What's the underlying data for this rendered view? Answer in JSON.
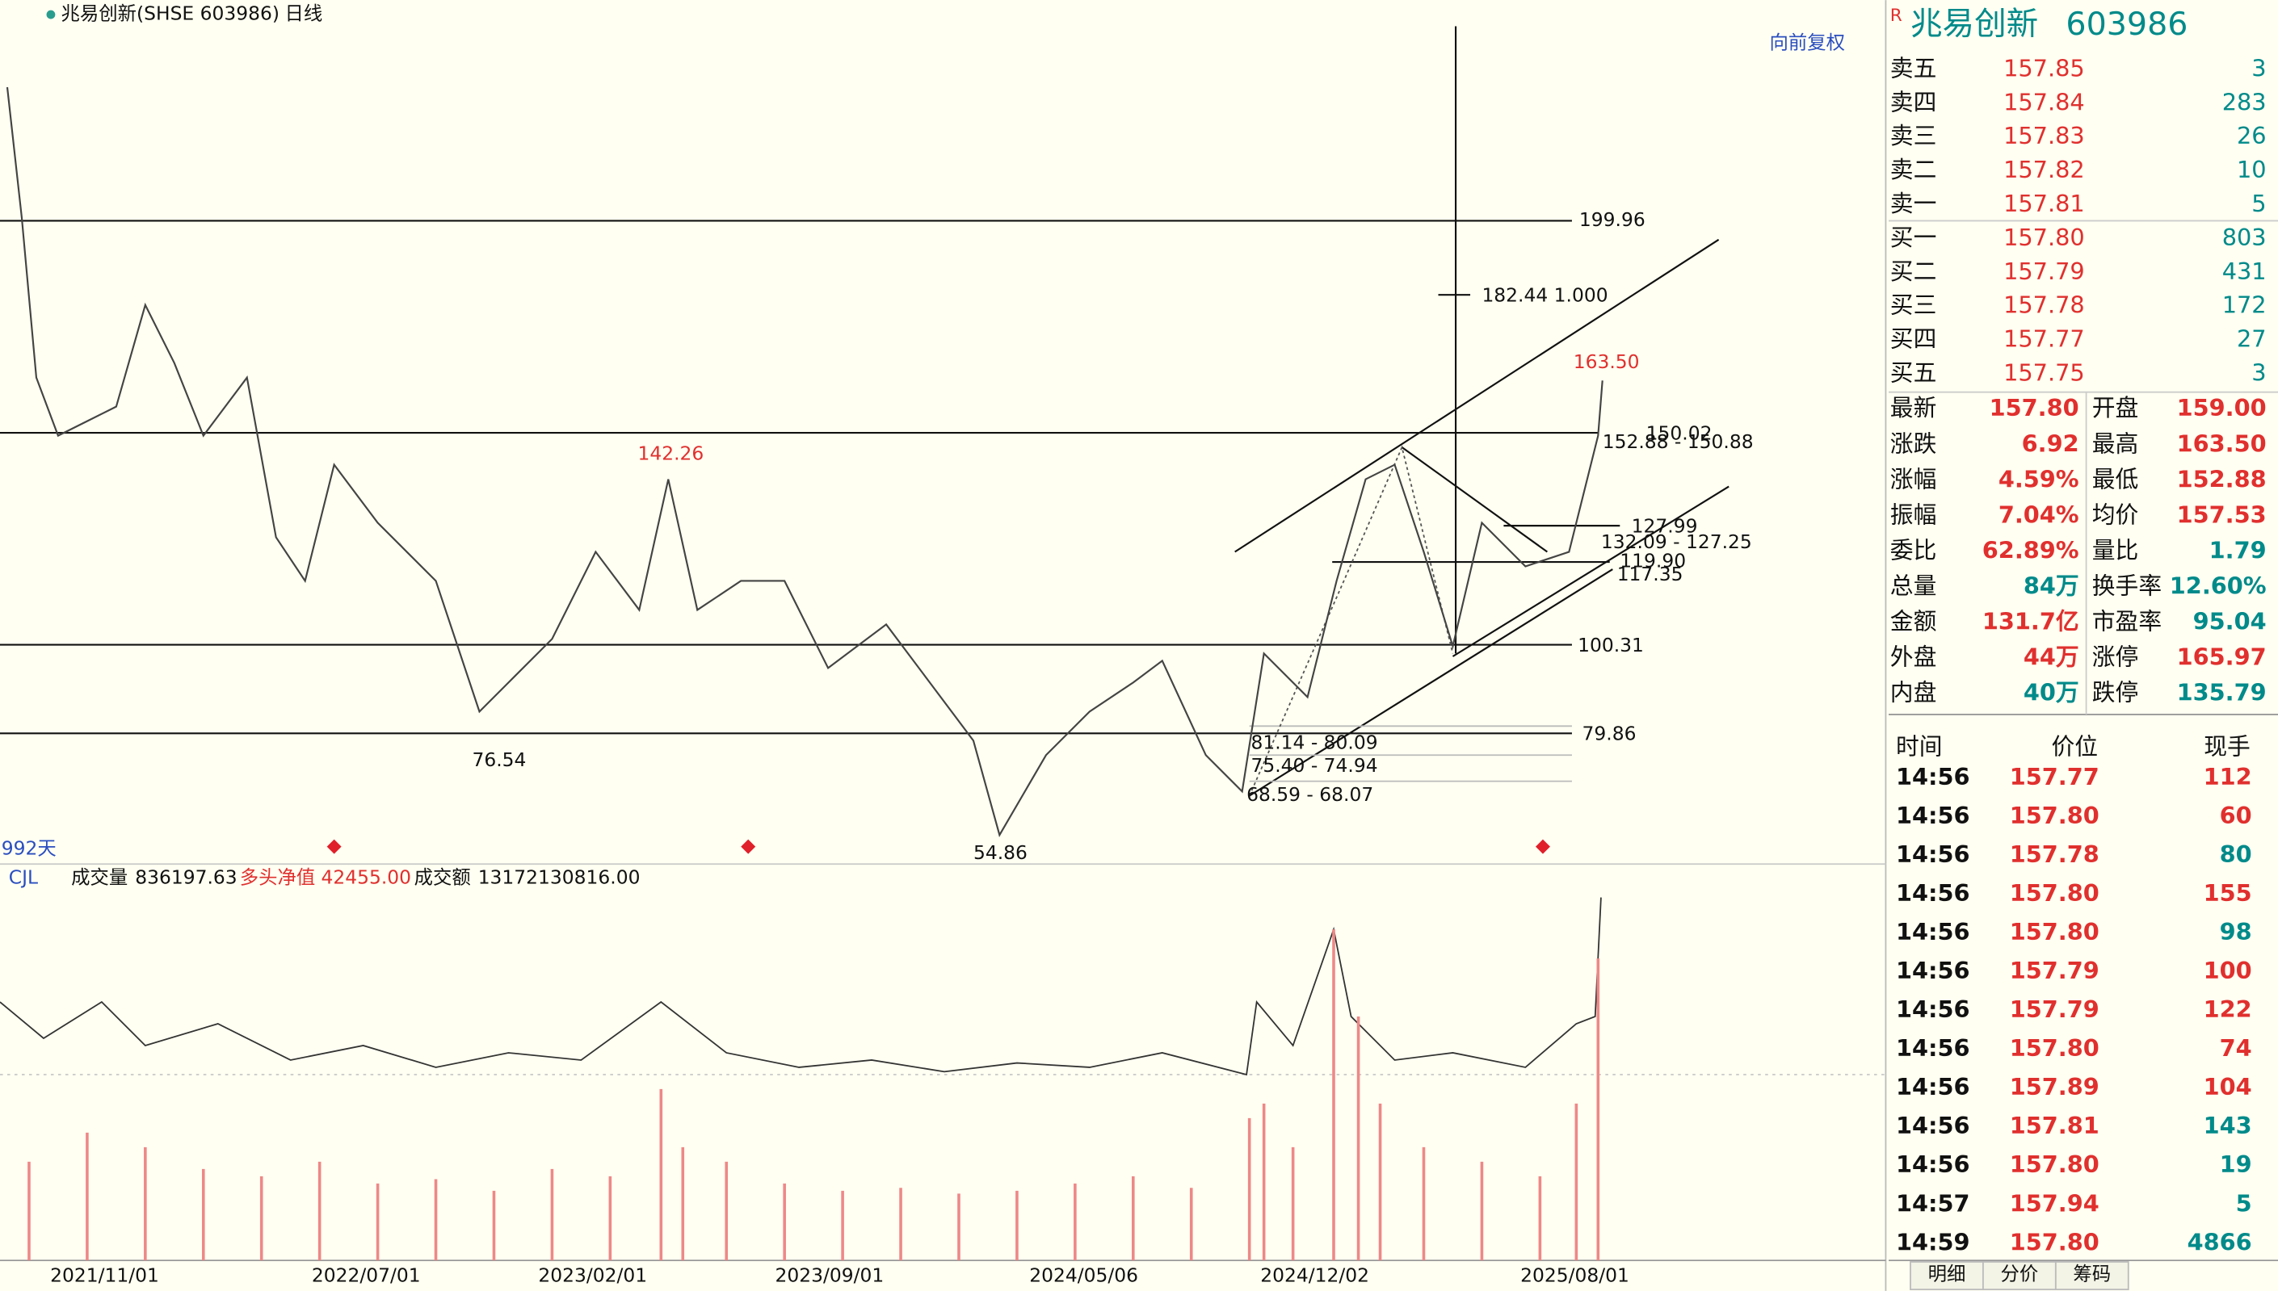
{
  "header": {
    "name": "兆易创新(SHSE 603986)",
    "period": "日线",
    "adjust": "向前复权"
  },
  "chart_labels": [
    "199.96",
    "182.44  1.000",
    "163.50",
    "150.02",
    "152.88 - 150.88",
    "142.26",
    "127.99",
    "132.09 - 127.25",
    "119.90",
    "117.35",
    "100.31",
    "79.86",
    "81.14 - 80.09",
    "75.40 - 74.94",
    "68.59 - 68.07",
    "76.54",
    "54.86"
  ],
  "days": "992天",
  "indicator": {
    "name": "CJL",
    "volume_label": "成交量",
    "volume": "836197.63",
    "net_label": "多头净值",
    "net": "42455.00",
    "amount_label": "成交额",
    "amount": "13172130816.00"
  },
  "x_axis": [
    "2021/11/01",
    "2022/07/01",
    "2023/02/01",
    "2023/09/01",
    "2024/05/06",
    "2024/12/02",
    "2025/08/01"
  ],
  "quote": {
    "name": "兆易创新",
    "code": "603986"
  },
  "order_book": [
    {
      "label": "卖五",
      "price": "157.85",
      "volume": "3"
    },
    {
      "label": "卖四",
      "price": "157.84",
      "volume": "283"
    },
    {
      "label": "卖三",
      "price": "157.83",
      "volume": "26"
    },
    {
      "label": "卖二",
      "price": "157.82",
      "volume": "10"
    },
    {
      "label": "卖一",
      "price": "157.81",
      "volume": "5"
    },
    {
      "label": "买一",
      "price": "157.80",
      "volume": "803"
    },
    {
      "label": "买二",
      "price": "157.79",
      "volume": "431"
    },
    {
      "label": "买三",
      "price": "157.78",
      "volume": "172"
    },
    {
      "label": "买四",
      "price": "157.77",
      "volume": "27"
    },
    {
      "label": "买五",
      "price": "157.75",
      "volume": "3"
    }
  ],
  "stats": [
    [
      {
        "label": "最新",
        "value": "157.80",
        "color": "#e0302e"
      },
      {
        "label": "开盘",
        "value": "159.00",
        "color": "#e0302e"
      }
    ],
    [
      {
        "label": "涨跌",
        "value": "6.92",
        "color": "#e0302e"
      },
      {
        "label": "最高",
        "value": "163.50",
        "color": "#e0302e"
      }
    ],
    [
      {
        "label": "涨幅",
        "value": "4.59%",
        "color": "#e0302e"
      },
      {
        "label": "最低",
        "value": "152.88",
        "color": "#e0302e"
      }
    ],
    [
      {
        "label": "振幅",
        "value": "7.04%",
        "color": "#e0302e"
      },
      {
        "label": "均价",
        "value": "157.53",
        "color": "#e0302e"
      }
    ],
    [
      {
        "label": "委比",
        "value": "62.89%",
        "color": "#e0302e"
      },
      {
        "label": "量比",
        "value": "1.79",
        "color": "#008a8a"
      }
    ],
    [
      {
        "label": "总量",
        "value": "84万",
        "color": "#008a8a"
      },
      {
        "label": "换手率",
        "value": "12.60%",
        "color": "#008a8a"
      }
    ],
    [
      {
        "label": "金额",
        "value": "131.7亿",
        "color": "#e0302e"
      },
      {
        "label": "市盈率",
        "value": "95.04",
        "color": "#008a8a"
      }
    ],
    [
      {
        "label": "外盘",
        "value": "44万",
        "color": "#e0302e"
      },
      {
        "label": "涨停",
        "value": "165.97",
        "color": "#e0302e"
      }
    ],
    [
      {
        "label": "内盘",
        "value": "40万",
        "color": "#008a8a"
      },
      {
        "label": "跌停",
        "value": "135.79",
        "color": "#008a8a"
      }
    ]
  ],
  "ticks_header": [
    "时间",
    "价位",
    "现手"
  ],
  "ticks": [
    [
      "14:56",
      "157.77",
      "112",
      "#e0302e"
    ],
    [
      "14:56",
      "157.80",
      "60",
      "#e0302e"
    ],
    [
      "14:56",
      "157.78",
      "80",
      "#008a8a"
    ],
    [
      "14:56",
      "157.80",
      "155",
      "#e0302e"
    ],
    [
      "14:56",
      "157.80",
      "98",
      "#008a8a"
    ],
    [
      "14:56",
      "157.79",
      "100",
      "#e0302e"
    ],
    [
      "14:56",
      "157.79",
      "122",
      "#e0302e"
    ],
    [
      "14:56",
      "157.80",
      "74",
      "#e0302e"
    ],
    [
      "14:56",
      "157.89",
      "104",
      "#e0302e"
    ],
    [
      "14:56",
      "157.81",
      "143",
      "#008a8a"
    ],
    [
      "14:56",
      "157.80",
      "19",
      "#008a8a"
    ],
    [
      "14:57",
      "157.94",
      "5",
      "#008a8a"
    ],
    [
      "14:59",
      "157.80",
      "4866",
      "#008a8a"
    ]
  ],
  "tabs": [
    "明细",
    "分价",
    "筹码"
  ]
}
